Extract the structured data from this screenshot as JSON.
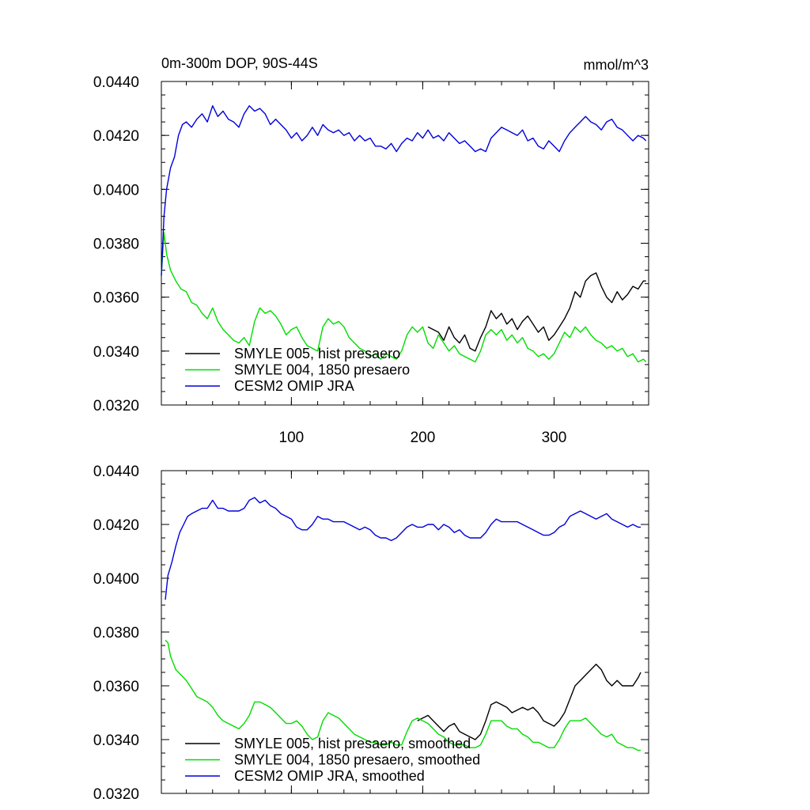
{
  "figure": {
    "title_left": "0m-300m DOP, 90S-44S",
    "title_right": "mmol/m^3"
  },
  "chart_data": [
    {
      "type": "line",
      "title": "0m-300m DOP, 90S-44S",
      "units": "mmol/m^3",
      "xlim": [
        1,
        372
      ],
      "ylim": [
        0.032,
        0.044
      ],
      "x_ticks": [
        100,
        200,
        300
      ],
      "x_tick_labels": [
        "100",
        "200",
        "300"
      ],
      "y_ticks": [
        0.032,
        0.034,
        0.036,
        0.038,
        0.04,
        0.042,
        0.044
      ],
      "y_tick_labels": [
        "0.0320",
        "0.0340",
        "0.0360",
        "0.0380",
        "0.0400",
        "0.0420",
        "0.0440"
      ],
      "grid": false,
      "legend": "bottom-left",
      "series": [
        {
          "name": "SMYLE 005, hist presaero",
          "color": "#000000",
          "x": [
            204,
            208,
            212,
            216,
            220,
            224,
            228,
            232,
            236,
            240,
            244,
            248,
            252,
            256,
            260,
            264,
            268,
            272,
            276,
            280,
            284,
            288,
            292,
            296,
            300,
            304,
            308,
            312,
            316,
            320,
            324,
            328,
            332,
            336,
            340,
            344,
            348,
            352,
            356,
            360,
            364,
            368,
            370
          ],
          "values": [
            0.0349,
            0.0348,
            0.0347,
            0.0344,
            0.0349,
            0.0345,
            0.0343,
            0.0346,
            0.0341,
            0.034,
            0.0345,
            0.0349,
            0.0355,
            0.0352,
            0.0354,
            0.035,
            0.0352,
            0.0348,
            0.0351,
            0.0353,
            0.035,
            0.0347,
            0.0349,
            0.0344,
            0.0346,
            0.0349,
            0.0352,
            0.0356,
            0.0362,
            0.036,
            0.0366,
            0.0368,
            0.0369,
            0.0364,
            0.036,
            0.0358,
            0.0362,
            0.0359,
            0.0361,
            0.0364,
            0.0363,
            0.0366,
            0.0366
          ]
        },
        {
          "name": "SMYLE 004, 1850 presaero",
          "color": "#00dd00",
          "x": [
            1,
            3,
            5,
            8,
            12,
            16,
            20,
            24,
            28,
            32,
            36,
            40,
            44,
            48,
            52,
            56,
            60,
            64,
            68,
            72,
            76,
            80,
            84,
            88,
            92,
            96,
            100,
            104,
            108,
            112,
            116,
            120,
            124,
            128,
            132,
            136,
            140,
            144,
            148,
            152,
            156,
            160,
            164,
            168,
            172,
            176,
            180,
            184,
            188,
            192,
            196,
            200,
            204,
            208,
            212,
            216,
            220,
            224,
            228,
            232,
            236,
            240,
            244,
            248,
            252,
            256,
            260,
            264,
            268,
            272,
            276,
            280,
            284,
            288,
            292,
            296,
            300,
            304,
            308,
            312,
            316,
            320,
            324,
            328,
            332,
            336,
            340,
            344,
            348,
            352,
            356,
            360,
            364,
            368,
            370
          ],
          "values": [
            0.0368,
            0.0384,
            0.0376,
            0.037,
            0.0366,
            0.0363,
            0.0362,
            0.0358,
            0.0357,
            0.0354,
            0.0352,
            0.0356,
            0.0351,
            0.0348,
            0.0346,
            0.0344,
            0.0343,
            0.0345,
            0.0342,
            0.0351,
            0.0356,
            0.0354,
            0.0355,
            0.0353,
            0.035,
            0.0346,
            0.0348,
            0.0349,
            0.0345,
            0.0342,
            0.0341,
            0.034,
            0.0349,
            0.0352,
            0.035,
            0.0351,
            0.0349,
            0.0345,
            0.0343,
            0.0341,
            0.034,
            0.0338,
            0.0339,
            0.0337,
            0.0339,
            0.0338,
            0.0337,
            0.034,
            0.0346,
            0.0349,
            0.0347,
            0.0349,
            0.0343,
            0.0341,
            0.0346,
            0.0343,
            0.034,
            0.0342,
            0.0339,
            0.0338,
            0.0337,
            0.0336,
            0.034,
            0.0346,
            0.0348,
            0.0346,
            0.0348,
            0.0344,
            0.0346,
            0.0343,
            0.0345,
            0.0341,
            0.034,
            0.0338,
            0.0339,
            0.0337,
            0.0339,
            0.0343,
            0.0347,
            0.0345,
            0.0349,
            0.0347,
            0.0349,
            0.0346,
            0.0344,
            0.0343,
            0.0341,
            0.0342,
            0.034,
            0.0341,
            0.0338,
            0.0339,
            0.0336,
            0.0337,
            0.0336
          ]
        },
        {
          "name": "CESM2 OMIP JRA",
          "color": "#0000dd",
          "x": [
            1,
            3,
            5,
            8,
            11,
            14,
            17,
            20,
            24,
            28,
            32,
            36,
            40,
            44,
            48,
            52,
            56,
            60,
            64,
            68,
            72,
            76,
            80,
            84,
            88,
            92,
            96,
            100,
            104,
            108,
            112,
            116,
            120,
            124,
            128,
            132,
            136,
            140,
            144,
            148,
            152,
            156,
            160,
            164,
            168,
            172,
            176,
            180,
            184,
            188,
            192,
            196,
            200,
            204,
            208,
            212,
            216,
            220,
            224,
            228,
            232,
            236,
            240,
            244,
            248,
            252,
            256,
            260,
            264,
            268,
            272,
            276,
            280,
            284,
            288,
            292,
            296,
            300,
            304,
            308,
            312,
            316,
            320,
            324,
            328,
            332,
            336,
            340,
            344,
            348,
            352,
            356,
            360,
            364,
            368,
            370
          ],
          "values": [
            0.0368,
            0.039,
            0.04,
            0.0408,
            0.0412,
            0.042,
            0.0424,
            0.0425,
            0.0423,
            0.0426,
            0.0428,
            0.0425,
            0.0431,
            0.0427,
            0.0429,
            0.0426,
            0.0425,
            0.0423,
            0.0428,
            0.0431,
            0.0429,
            0.043,
            0.0428,
            0.0424,
            0.0426,
            0.0424,
            0.0422,
            0.0419,
            0.0421,
            0.0418,
            0.042,
            0.0423,
            0.042,
            0.0424,
            0.0422,
            0.0421,
            0.0422,
            0.042,
            0.0421,
            0.0418,
            0.042,
            0.0418,
            0.0419,
            0.0416,
            0.0416,
            0.0415,
            0.0417,
            0.0414,
            0.0417,
            0.0419,
            0.0418,
            0.0421,
            0.0419,
            0.0422,
            0.0419,
            0.042,
            0.0418,
            0.0421,
            0.0419,
            0.0417,
            0.0418,
            0.0416,
            0.0414,
            0.0415,
            0.0414,
            0.0419,
            0.0421,
            0.0423,
            0.0422,
            0.0421,
            0.042,
            0.0422,
            0.0418,
            0.0419,
            0.0416,
            0.0415,
            0.0418,
            0.0416,
            0.0414,
            0.0418,
            0.0421,
            0.0423,
            0.0425,
            0.0427,
            0.0425,
            0.0424,
            0.0422,
            0.0425,
            0.0426,
            0.0423,
            0.0422,
            0.042,
            0.0418,
            0.042,
            0.0419,
            0.0418
          ]
        }
      ]
    },
    {
      "type": "line",
      "xlim": [
        1,
        372
      ],
      "ylim": [
        0.032,
        0.044
      ],
      "x_ticks": [
        100,
        200,
        300
      ],
      "x_tick_labels": [],
      "y_ticks": [
        0.032,
        0.034,
        0.036,
        0.038,
        0.04,
        0.042,
        0.044
      ],
      "y_tick_labels": [
        "0.0320",
        "0.0340",
        "0.0360",
        "0.0380",
        "0.0400",
        "0.0420",
        "0.0440"
      ],
      "grid": false,
      "legend": "bottom-left",
      "series": [
        {
          "name": "SMYLE 005, hist presaero, smoothed",
          "color": "#000000",
          "x": [
            196,
            200,
            204,
            208,
            212,
            216,
            220,
            224,
            228,
            232,
            236,
            240,
            244,
            248,
            252,
            256,
            260,
            264,
            268,
            272,
            276,
            280,
            284,
            288,
            292,
            296,
            300,
            304,
            308,
            312,
            316,
            320,
            324,
            328,
            332,
            336,
            340,
            344,
            348,
            352,
            356,
            360,
            364,
            366
          ],
          "values": [
            0.0347,
            0.0348,
            0.0349,
            0.0347,
            0.0345,
            0.0343,
            0.0345,
            0.0346,
            0.0343,
            0.0342,
            0.0341,
            0.034,
            0.0342,
            0.0347,
            0.0353,
            0.0354,
            0.0353,
            0.0352,
            0.035,
            0.0351,
            0.0352,
            0.0351,
            0.0352,
            0.035,
            0.0347,
            0.0346,
            0.0345,
            0.0347,
            0.035,
            0.0355,
            0.036,
            0.0362,
            0.0364,
            0.0366,
            0.0368,
            0.0366,
            0.0362,
            0.036,
            0.0362,
            0.036,
            0.036,
            0.036,
            0.0363,
            0.0365
          ]
        },
        {
          "name": "SMYLE 004, 1850 presaero, smoothed",
          "color": "#00dd00",
          "x": [
            4,
            6,
            8,
            12,
            16,
            20,
            24,
            28,
            32,
            36,
            40,
            44,
            48,
            52,
            56,
            60,
            64,
            68,
            72,
            76,
            80,
            84,
            88,
            92,
            96,
            100,
            104,
            108,
            112,
            116,
            120,
            124,
            128,
            132,
            136,
            140,
            144,
            148,
            152,
            156,
            160,
            164,
            168,
            172,
            176,
            180,
            184,
            188,
            192,
            196,
            200,
            204,
            208,
            212,
            216,
            220,
            224,
            228,
            232,
            236,
            240,
            244,
            248,
            252,
            256,
            260,
            264,
            268,
            272,
            276,
            280,
            284,
            288,
            292,
            296,
            300,
            304,
            308,
            312,
            316,
            320,
            324,
            328,
            332,
            336,
            340,
            344,
            348,
            352,
            356,
            360,
            364,
            366
          ],
          "values": [
            0.0377,
            0.0376,
            0.0371,
            0.0366,
            0.0364,
            0.0362,
            0.0359,
            0.0356,
            0.0355,
            0.0354,
            0.0352,
            0.0349,
            0.0347,
            0.0346,
            0.0345,
            0.0344,
            0.0346,
            0.0349,
            0.0354,
            0.0354,
            0.0353,
            0.0352,
            0.035,
            0.0348,
            0.0346,
            0.0346,
            0.0347,
            0.0345,
            0.0342,
            0.034,
            0.0341,
            0.0347,
            0.035,
            0.0349,
            0.0348,
            0.0346,
            0.0344,
            0.0342,
            0.0341,
            0.034,
            0.0339,
            0.0339,
            0.0338,
            0.0338,
            0.0339,
            0.0338,
            0.0338,
            0.0343,
            0.0347,
            0.0348,
            0.0347,
            0.0346,
            0.0344,
            0.0342,
            0.0341,
            0.0339,
            0.0338,
            0.0338,
            0.0338,
            0.0337,
            0.0337,
            0.0338,
            0.0342,
            0.0347,
            0.0347,
            0.0347,
            0.0345,
            0.0344,
            0.0344,
            0.0342,
            0.0341,
            0.0339,
            0.0339,
            0.0338,
            0.0337,
            0.0337,
            0.034,
            0.0344,
            0.0347,
            0.0347,
            0.0347,
            0.0348,
            0.0346,
            0.0344,
            0.0342,
            0.0341,
            0.0342,
            0.0339,
            0.0338,
            0.0337,
            0.0337,
            0.0336,
            0.0336
          ]
        },
        {
          "name": "CESM2 OMIP JRA, smoothed",
          "color": "#0000dd",
          "x": [
            4,
            6,
            9,
            12,
            15,
            18,
            21,
            24,
            28,
            32,
            36,
            40,
            44,
            48,
            52,
            56,
            60,
            64,
            68,
            72,
            76,
            80,
            84,
            88,
            92,
            96,
            100,
            104,
            108,
            112,
            116,
            120,
            124,
            128,
            132,
            136,
            140,
            144,
            148,
            152,
            156,
            160,
            164,
            168,
            172,
            176,
            180,
            184,
            188,
            192,
            196,
            200,
            204,
            208,
            212,
            216,
            220,
            224,
            228,
            232,
            236,
            240,
            244,
            248,
            252,
            256,
            260,
            264,
            268,
            272,
            276,
            280,
            284,
            288,
            292,
            296,
            300,
            304,
            308,
            312,
            316,
            320,
            324,
            328,
            332,
            336,
            340,
            344,
            348,
            352,
            356,
            360,
            364,
            366
          ],
          "values": [
            0.0392,
            0.0401,
            0.0406,
            0.0412,
            0.0417,
            0.042,
            0.0423,
            0.0424,
            0.0425,
            0.0426,
            0.0426,
            0.0429,
            0.0426,
            0.0426,
            0.0425,
            0.0425,
            0.0425,
            0.0426,
            0.0429,
            0.043,
            0.0428,
            0.0429,
            0.0427,
            0.0426,
            0.0424,
            0.0423,
            0.0422,
            0.0419,
            0.0418,
            0.0418,
            0.042,
            0.0423,
            0.0422,
            0.0422,
            0.0421,
            0.0421,
            0.0421,
            0.042,
            0.0419,
            0.0418,
            0.0419,
            0.0418,
            0.0416,
            0.0415,
            0.0415,
            0.0414,
            0.0415,
            0.0417,
            0.0419,
            0.042,
            0.0419,
            0.0419,
            0.042,
            0.042,
            0.0418,
            0.042,
            0.0419,
            0.0417,
            0.0418,
            0.0416,
            0.0415,
            0.0415,
            0.0415,
            0.0417,
            0.042,
            0.0422,
            0.0421,
            0.0421,
            0.0421,
            0.0421,
            0.042,
            0.0419,
            0.0418,
            0.0417,
            0.0416,
            0.0416,
            0.0417,
            0.0419,
            0.042,
            0.0423,
            0.0424,
            0.0425,
            0.0424,
            0.0423,
            0.0422,
            0.0423,
            0.0424,
            0.0422,
            0.0421,
            0.042,
            0.0419,
            0.042,
            0.0419,
            0.0419
          ]
        }
      ]
    }
  ]
}
